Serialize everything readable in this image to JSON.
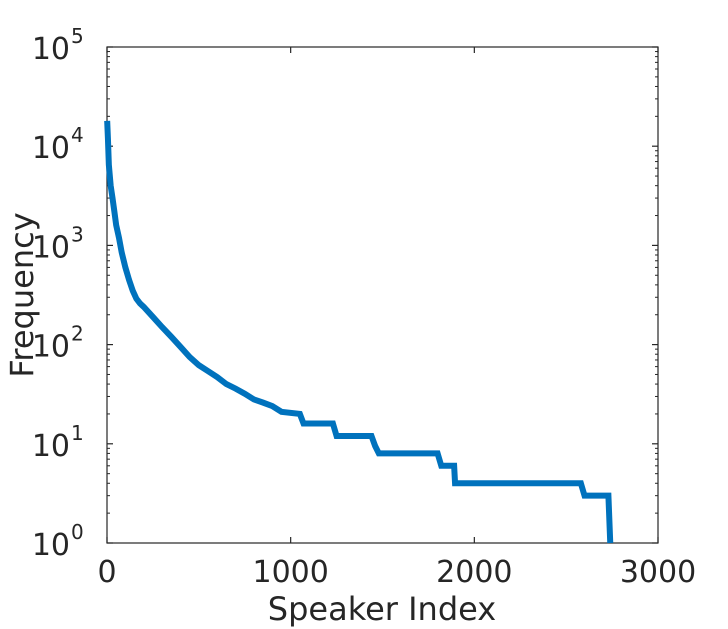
{
  "chart_data": {
    "type": "line",
    "title": "",
    "xlabel": "Speaker Index",
    "ylabel": "Frequency",
    "xlim": [
      0,
      3000
    ],
    "ylim": [
      1,
      100000
    ],
    "yscale": "log",
    "grid": false,
    "legend": "none",
    "x_ticks": [
      0,
      1000,
      2000,
      3000
    ],
    "x_tick_labels": [
      "0",
      "1000",
      "2000",
      "3000"
    ],
    "y_ticks": [
      1,
      10,
      100,
      1000,
      10000,
      100000
    ],
    "y_tick_labels": [
      {
        "base": "10",
        "exp": "0"
      },
      {
        "base": "10",
        "exp": "1"
      },
      {
        "base": "10",
        "exp": "2"
      },
      {
        "base": "10",
        "exp": "3"
      },
      {
        "base": "10",
        "exp": "4"
      },
      {
        "base": "10",
        "exp": "5"
      }
    ],
    "series": [
      {
        "color": "#0072BD",
        "points": [
          [
            1,
            18000
          ],
          [
            5,
            12000
          ],
          [
            10,
            6500
          ],
          [
            20,
            4000
          ],
          [
            30,
            3000
          ],
          [
            40,
            2200
          ],
          [
            50,
            1600
          ],
          [
            65,
            1200
          ],
          [
            80,
            850
          ],
          [
            100,
            600
          ],
          [
            120,
            450
          ],
          [
            140,
            350
          ],
          [
            160,
            290
          ],
          [
            180,
            260
          ],
          [
            200,
            240
          ],
          [
            250,
            190
          ],
          [
            300,
            150
          ],
          [
            350,
            120
          ],
          [
            400,
            95
          ],
          [
            450,
            75
          ],
          [
            500,
            62
          ],
          [
            550,
            54
          ],
          [
            600,
            47
          ],
          [
            650,
            40
          ],
          [
            700,
            36
          ],
          [
            750,
            32
          ],
          [
            800,
            28
          ],
          [
            850,
            26
          ],
          [
            900,
            24
          ],
          [
            950,
            21
          ],
          [
            1050,
            20
          ],
          [
            1070,
            16
          ],
          [
            1230,
            16
          ],
          [
            1250,
            12
          ],
          [
            1440,
            12
          ],
          [
            1460,
            9.5
          ],
          [
            1480,
            8
          ],
          [
            1800,
            8
          ],
          [
            1820,
            6
          ],
          [
            1890,
            6
          ],
          [
            1895,
            4
          ],
          [
            2580,
            4
          ],
          [
            2600,
            3
          ],
          [
            2730,
            3
          ],
          [
            2740,
            1
          ]
        ]
      }
    ]
  }
}
